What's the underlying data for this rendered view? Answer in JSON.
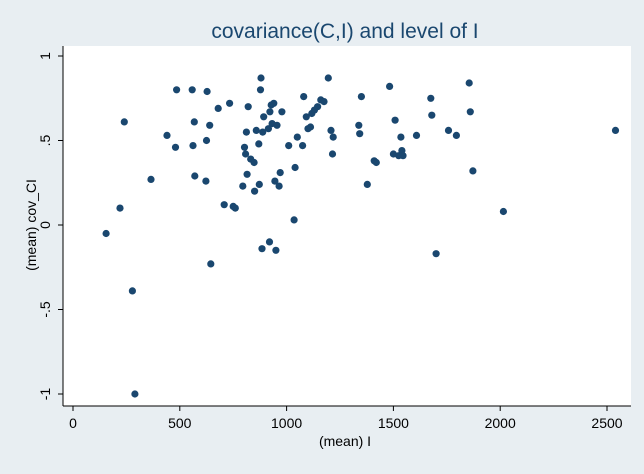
{
  "chart_data": {
    "type": "scatter",
    "title": "covariance(C,I) and level of I",
    "xlabel": "(mean) I",
    "ylabel": "(mean) cov_CI",
    "xlim": [
      0,
      2550
    ],
    "ylim": [
      -1.0,
      1.0
    ],
    "xticks": [
      0,
      500,
      1000,
      1500,
      2000,
      2500
    ],
    "yticks": [
      -1,
      -0.5,
      0,
      0.5,
      1
    ],
    "ytick_labels": [
      "-1",
      "-.5",
      "0",
      ".5",
      "1"
    ],
    "grid": false,
    "legend": "none",
    "colors": {
      "background": "#e8eef2",
      "plot_area": "#ffffff",
      "marker": "#1a476f",
      "title": "#1a476f",
      "axis": "#000000"
    },
    "points": [
      [
        155,
        -0.05
      ],
      [
        220,
        0.1
      ],
      [
        240,
        0.61
      ],
      [
        278,
        -0.39
      ],
      [
        290,
        -1.0
      ],
      [
        365,
        0.27
      ],
      [
        440,
        0.53
      ],
      [
        480,
        0.46
      ],
      [
        485,
        0.8
      ],
      [
        558,
        0.8
      ],
      [
        562,
        0.47
      ],
      [
        568,
        0.61
      ],
      [
        570,
        0.29
      ],
      [
        622,
        0.26
      ],
      [
        625,
        0.5
      ],
      [
        628,
        0.79
      ],
      [
        640,
        0.59
      ],
      [
        645,
        -0.23
      ],
      [
        680,
        0.69
      ],
      [
        708,
        0.12
      ],
      [
        733,
        0.72
      ],
      [
        750,
        0.11
      ],
      [
        760,
        0.1
      ],
      [
        795,
        0.23
      ],
      [
        803,
        0.46
      ],
      [
        808,
        0.42
      ],
      [
        812,
        0.55
      ],
      [
        815,
        0.3
      ],
      [
        820,
        0.7
      ],
      [
        832,
        0.39
      ],
      [
        848,
        0.37
      ],
      [
        850,
        0.2
      ],
      [
        858,
        0.56
      ],
      [
        870,
        0.48
      ],
      [
        872,
        0.24
      ],
      [
        878,
        0.8
      ],
      [
        880,
        0.87
      ],
      [
        885,
        -0.14
      ],
      [
        888,
        0.55
      ],
      [
        893,
        0.64
      ],
      [
        915,
        0.57
      ],
      [
        920,
        -0.1
      ],
      [
        922,
        0.67
      ],
      [
        928,
        0.71
      ],
      [
        932,
        0.6
      ],
      [
        940,
        0.72
      ],
      [
        945,
        0.26
      ],
      [
        950,
        -0.15
      ],
      [
        955,
        0.59
      ],
      [
        965,
        0.23
      ],
      [
        970,
        0.31
      ],
      [
        978,
        0.67
      ],
      [
        1010,
        0.47
      ],
      [
        1035,
        0.03
      ],
      [
        1040,
        0.34
      ],
      [
        1050,
        0.52
      ],
      [
        1075,
        0.47
      ],
      [
        1080,
        0.76
      ],
      [
        1092,
        0.64
      ],
      [
        1100,
        0.57
      ],
      [
        1112,
        0.58
      ],
      [
        1118,
        0.66
      ],
      [
        1130,
        0.68
      ],
      [
        1145,
        0.7
      ],
      [
        1160,
        0.74
      ],
      [
        1175,
        0.73
      ],
      [
        1195,
        0.87
      ],
      [
        1208,
        0.56
      ],
      [
        1215,
        0.42
      ],
      [
        1218,
        0.52
      ],
      [
        1338,
        0.59
      ],
      [
        1342,
        0.54
      ],
      [
        1350,
        0.76
      ],
      [
        1378,
        0.24
      ],
      [
        1410,
        0.38
      ],
      [
        1420,
        0.37
      ],
      [
        1482,
        0.82
      ],
      [
        1500,
        0.42
      ],
      [
        1508,
        0.62
      ],
      [
        1525,
        0.41
      ],
      [
        1535,
        0.52
      ],
      [
        1540,
        0.44
      ],
      [
        1545,
        0.41
      ],
      [
        1608,
        0.53
      ],
      [
        1675,
        0.75
      ],
      [
        1680,
        0.65
      ],
      [
        1700,
        -0.17
      ],
      [
        1758,
        0.56
      ],
      [
        1795,
        0.53
      ],
      [
        1855,
        0.84
      ],
      [
        1860,
        0.67
      ],
      [
        1872,
        0.32
      ],
      [
        2015,
        0.08
      ],
      [
        2540,
        0.56
      ]
    ]
  }
}
